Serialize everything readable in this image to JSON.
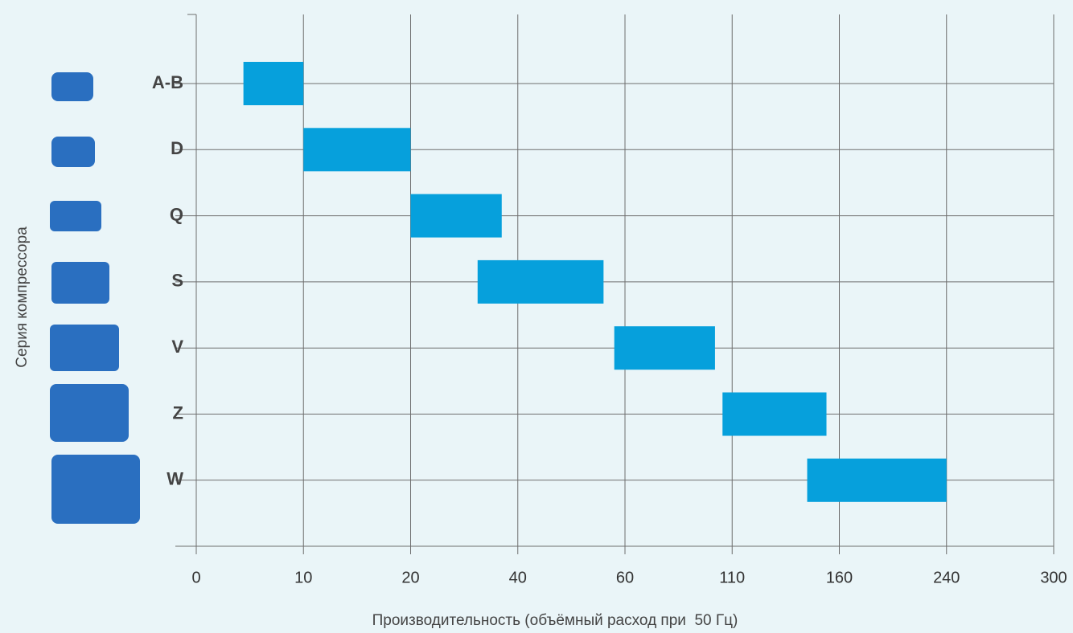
{
  "chart_data": {
    "type": "range",
    "y_label": "Серия компрессора",
    "x_label": "Производительность (объёмный расход при  50 Гц)",
    "categories": [
      "A-B",
      "D",
      "Q",
      "S",
      "V",
      "Z",
      "W"
    ],
    "ranges": [
      [
        4.4,
        10
      ],
      [
        10,
        20
      ],
      [
        20,
        37
      ],
      [
        32.5,
        56
      ],
      [
        58,
        102
      ],
      [
        105.5,
        154
      ],
      [
        145,
        240
      ]
    ],
    "color": "#06a0dc",
    "xscale": "piecewise-linear",
    "xlim": [
      0,
      300
    ],
    "xticks": [
      0,
      10,
      20,
      40,
      60,
      110,
      160,
      240,
      300
    ],
    "grid": true
  }
}
